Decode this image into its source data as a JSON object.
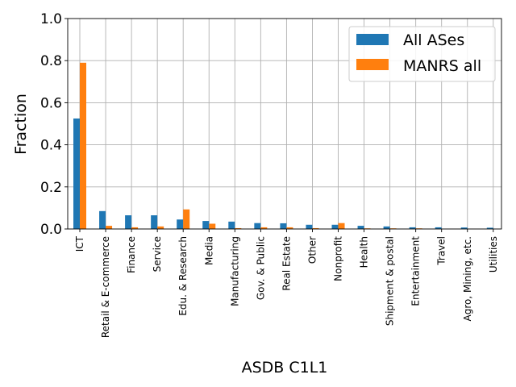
{
  "chart_data": {
    "type": "bar",
    "categories": [
      "ICT",
      "Retail & E-commerce",
      "Finance",
      "Service",
      "Edu. & Research",
      "Media",
      "Manufacturing",
      "Gov. & Public",
      "Real Estate",
      "Other",
      "Nonprofit",
      "Health",
      "Shipment & postal",
      "Entertainment",
      "Travel",
      "Agro, Mining, etc.",
      "Utilities"
    ],
    "series": [
      {
        "name": "All ASes",
        "color": "#1f77b4",
        "values": [
          0.525,
          0.085,
          0.065,
          0.065,
          0.045,
          0.038,
          0.035,
          0.028,
          0.027,
          0.02,
          0.02,
          0.015,
          0.012,
          0.008,
          0.008,
          0.007,
          0.006
        ]
      },
      {
        "name": "MANRS all",
        "color": "#ff7f0e",
        "values": [
          0.79,
          0.015,
          0.008,
          0.012,
          0.093,
          0.025,
          0.004,
          0.008,
          0.008,
          0.004,
          0.028,
          0.003,
          0.003,
          0.003,
          0.0,
          0.0,
          0.0
        ]
      }
    ],
    "xlabel": "ASDB C1L1",
    "ylabel": "Fraction",
    "ylim": [
      0,
      1.0
    ],
    "yticks": [
      "0.0",
      "0.2",
      "0.4",
      "0.6",
      "0.8",
      "1.0"
    ],
    "grid": true,
    "legend_position": "top-right"
  }
}
